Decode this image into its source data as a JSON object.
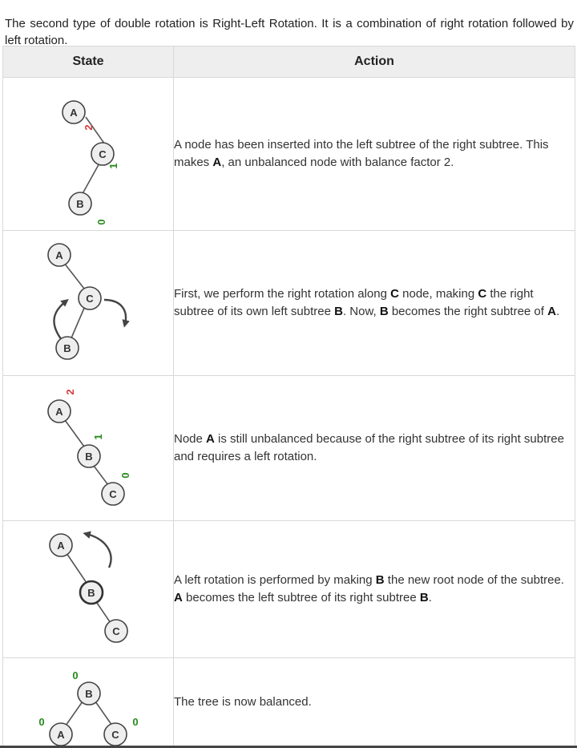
{
  "intro": "The second type of double rotation is Right-Left Rotation. It is a combination of right rotation followed by left rotation.",
  "table": {
    "headers": {
      "state": "State",
      "action": "Action"
    },
    "rows": [
      {
        "nodes": {
          "n1": "A",
          "n2": "C",
          "n3": "B"
        },
        "factors": {
          "f1": "2",
          "f2": "1",
          "f3": "0"
        },
        "action": {
          "s1": "A node has been inserted into the left subtree of the right subtree. This makes ",
          "b1": "A",
          "s2": ", an unbalanced node with balance factor 2."
        }
      },
      {
        "nodes": {
          "n1": "A",
          "n2": "C",
          "n3": "B"
        },
        "action": {
          "s1": "First, we perform the right rotation along ",
          "b1": "C",
          "s2": " node, making ",
          "b2": "C",
          "s3": " the right subtree of its own left subtree ",
          "b3": "B",
          "s4": ". Now, ",
          "b4": "B",
          "s5": " becomes the right subtree of ",
          "b5": "A",
          "s6": "."
        }
      },
      {
        "nodes": {
          "n1": "A",
          "n2": "B",
          "n3": "C"
        },
        "factors": {
          "f1": "2",
          "f2": "1",
          "f3": "0"
        },
        "action": {
          "s1": "Node ",
          "b1": "A",
          "s2": " is still unbalanced because of the right subtree of its right subtree and requires a left rotation."
        }
      },
      {
        "nodes": {
          "n1": "A",
          "n2": "B",
          "n3": "C"
        },
        "action": {
          "s1": "A left rotation is performed by making ",
          "b1": "B",
          "s2": " the new root node of the subtree. ",
          "b2": "A",
          "s3": " becomes the left subtree of its right subtree ",
          "b3": "B",
          "s4": "."
        }
      },
      {
        "nodes": {
          "n1": "B",
          "n2": "A",
          "n3": "C"
        },
        "factors": {
          "f1": "0",
          "f2": "0",
          "f3": "0"
        },
        "action": {
          "s1": "The tree is now balanced."
        }
      }
    ]
  },
  "colors": {
    "unbalanced_factor": "#d23b3b",
    "balanced_factor": "#2a8a1e",
    "node_fill": "#eeeeee",
    "node_stroke": "#444444",
    "edge": "#555555"
  }
}
